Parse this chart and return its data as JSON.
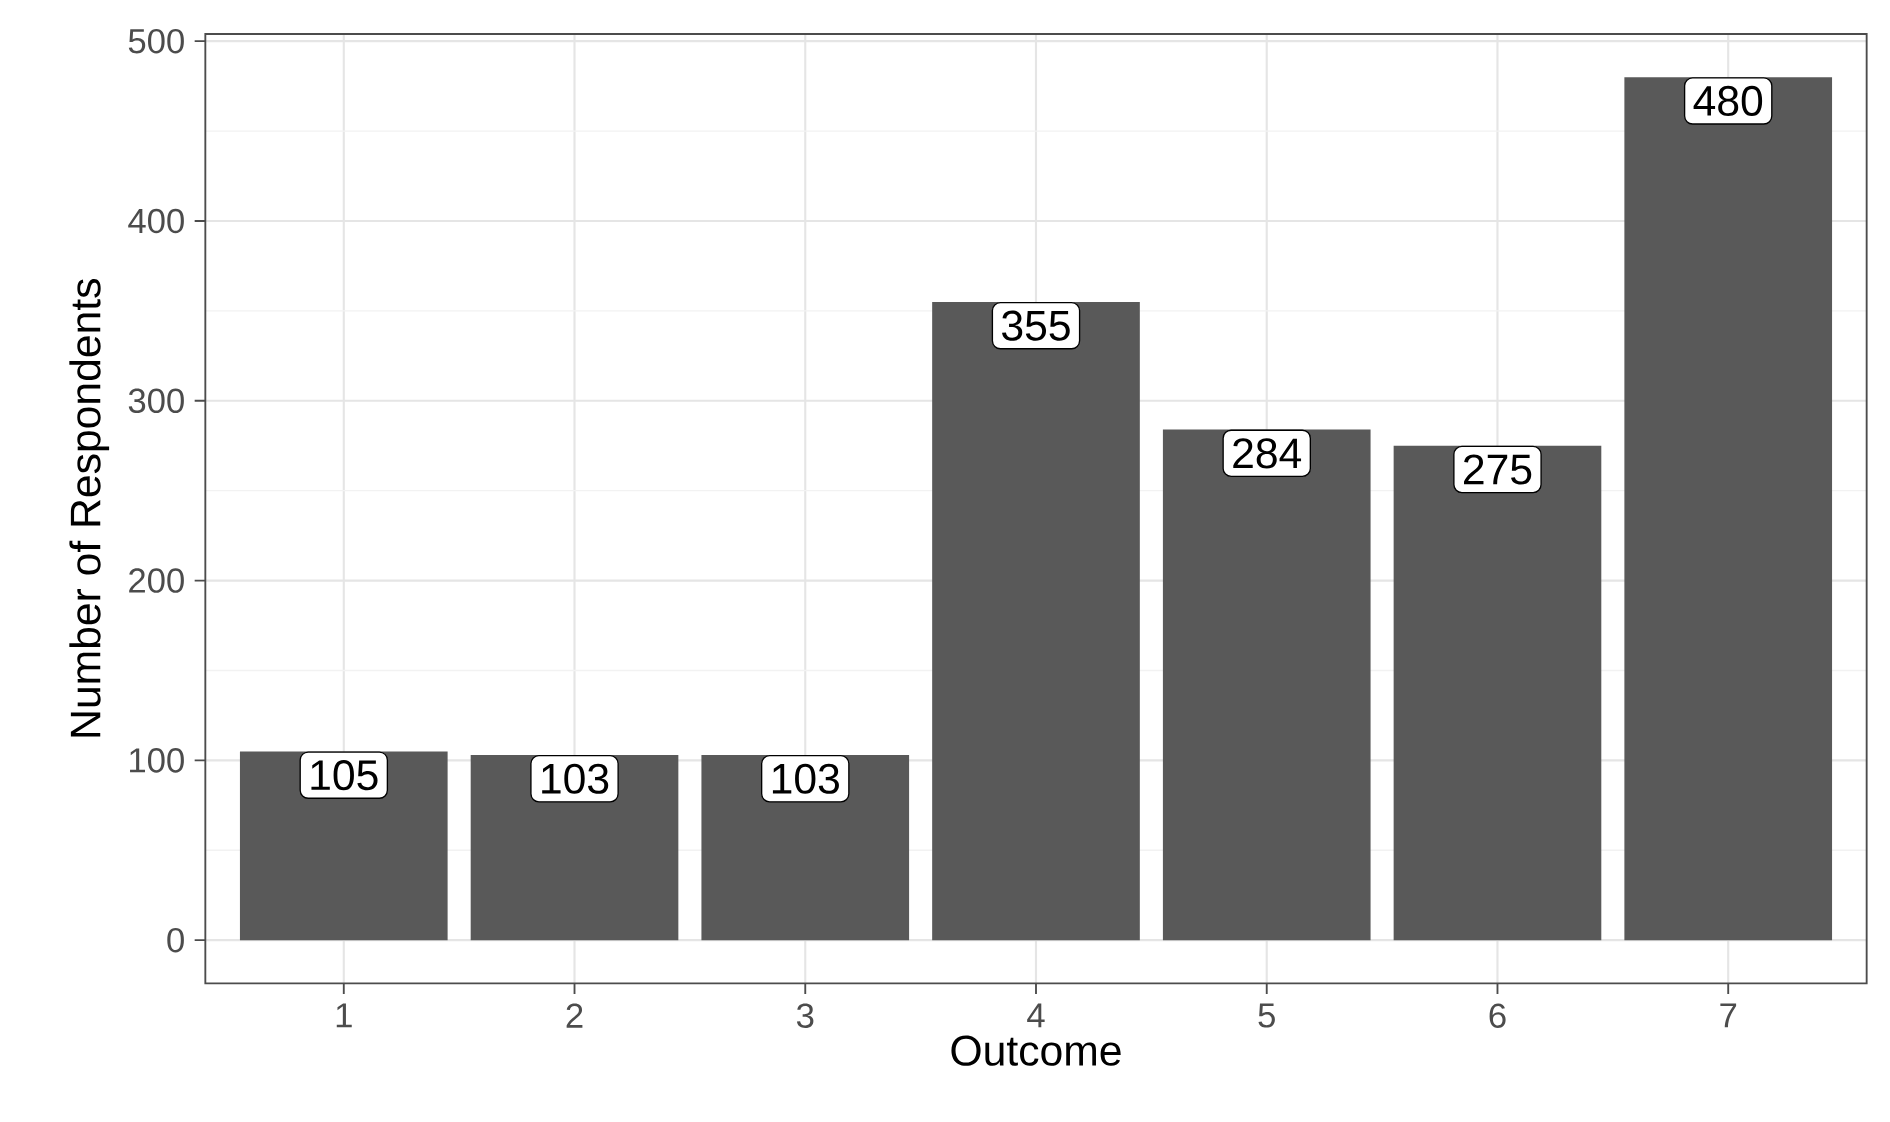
{
  "chart_data": {
    "type": "bar",
    "xlabel": "Outcome",
    "ylabel": "Number of Respondents",
    "categories": [
      "1",
      "2",
      "3",
      "4",
      "5",
      "6",
      "7"
    ],
    "values": [
      105,
      103,
      103,
      355,
      284,
      275,
      480
    ],
    "color": "#595959",
    "data_labels": true,
    "grid": true,
    "ylim": [
      -24,
      504
    ],
    "yticks": [
      0,
      100,
      200,
      300,
      400,
      500
    ]
  }
}
